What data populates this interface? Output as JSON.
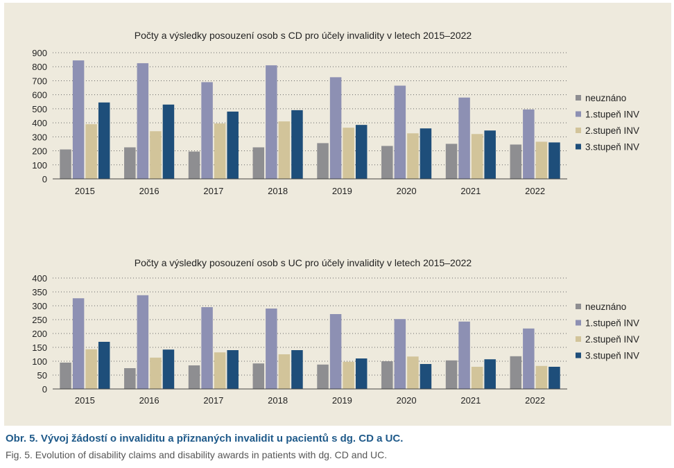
{
  "colors": {
    "panel_bg": "#eeeadd",
    "gridline": "#666666",
    "text": "#222222",
    "caption_title": "#1f5a8a",
    "caption_sub": "#555555"
  },
  "chart_data": [
    {
      "type": "bar",
      "title": "Počty a výsledky posouzení osob s CD pro účely invalidity v letech 2015–2022",
      "categories": [
        "2015",
        "2016",
        "2017",
        "2018",
        "2019",
        "2020",
        "2021",
        "2022"
      ],
      "ylim": [
        0,
        900
      ],
      "yticks": [
        0,
        100,
        200,
        300,
        400,
        500,
        600,
        700,
        800,
        900
      ],
      "grid": true,
      "legend": "right",
      "series": [
        {
          "name": "neuznáno",
          "color": "#8e8e91",
          "values": [
            210,
            225,
            195,
            225,
            255,
            235,
            250,
            245
          ]
        },
        {
          "name": "1.stupeň INV",
          "color": "#8d90b3",
          "values": [
            845,
            825,
            690,
            810,
            725,
            665,
            580,
            495
          ]
        },
        {
          "name": "2.stupeň INV",
          "color": "#d2c49a",
          "values": [
            390,
            340,
            395,
            410,
            365,
            325,
            320,
            265
          ]
        },
        {
          "name": "3.stupeň INV",
          "color": "#1e4e7a",
          "values": [
            545,
            530,
            480,
            490,
            385,
            360,
            345,
            260
          ]
        }
      ]
    },
    {
      "type": "bar",
      "title": "Počty a výsledky posouzení osob s UC pro účely invalidity v letech 2015–2022",
      "categories": [
        "2015",
        "2016",
        "2017",
        "2018",
        "2019",
        "2020",
        "2021",
        "2022"
      ],
      "ylim": [
        0,
        400
      ],
      "yticks": [
        0,
        50,
        100,
        150,
        200,
        250,
        300,
        350,
        400
      ],
      "grid": true,
      "legend": "right",
      "series": [
        {
          "name": "neuznáno",
          "color": "#8e8e91",
          "values": [
            95,
            75,
            85,
            92,
            88,
            100,
            103,
            118
          ]
        },
        {
          "name": "1.stupeň INV",
          "color": "#8d90b3",
          "values": [
            327,
            338,
            295,
            290,
            270,
            252,
            243,
            218
          ]
        },
        {
          "name": "2.stupeň INV",
          "color": "#d2c49a",
          "values": [
            143,
            113,
            132,
            125,
            98,
            117,
            80,
            83
          ]
        },
        {
          "name": "3.stupeň INV",
          "color": "#1e4e7a",
          "values": [
            170,
            142,
            140,
            140,
            110,
            90,
            107,
            80
          ]
        }
      ]
    }
  ],
  "caption": {
    "title": "Obr. 5. Vývoj žádostí o invaliditu a přiznaných invalidit u pacientů s dg. CD a UC.",
    "subtitle": "Fig. 5. Evolution of disability claims and disability awards in patients with dg. CD and UC."
  }
}
